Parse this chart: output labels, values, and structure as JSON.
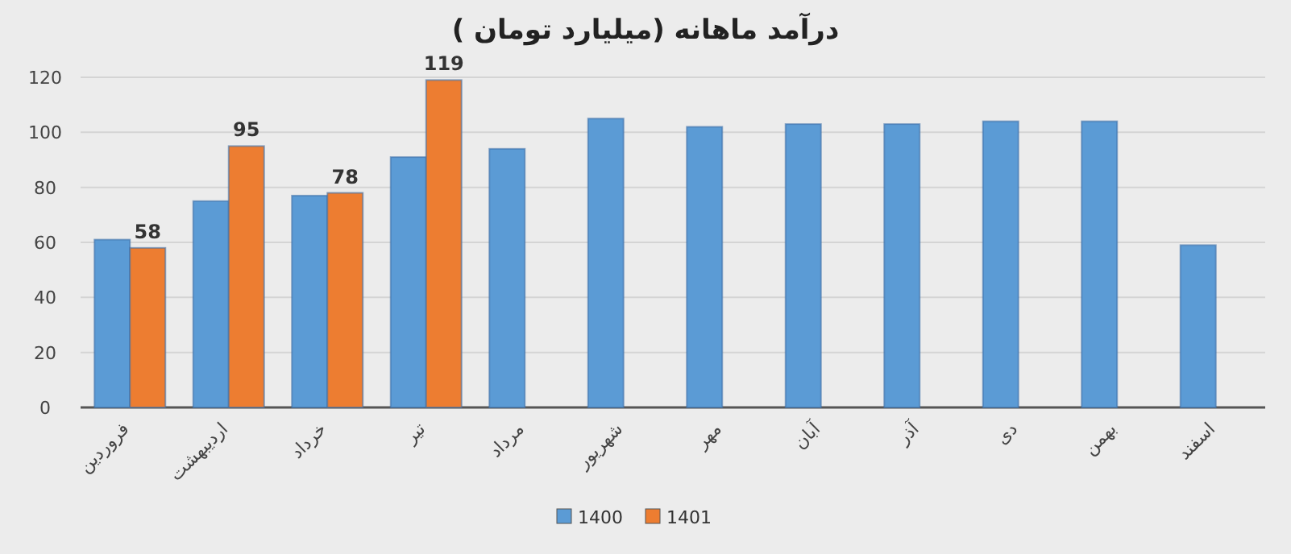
{
  "chart_data": {
    "type": "bar",
    "title": "درآمد ماهانه (میلیارد تومان )",
    "categories": [
      "فروردین",
      "اردیبهشت",
      "خرداد",
      "تیر",
      "مرداد",
      "شهریور",
      "مهر",
      "آبان",
      "آذر",
      "دی",
      "بهمن",
      "اسفند"
    ],
    "series": [
      {
        "name": "1400",
        "color": "#5b9bd5",
        "values": [
          61,
          75,
          77,
          91,
          94,
          105,
          102,
          103,
          103,
          104,
          104,
          59
        ]
      },
      {
        "name": "1401",
        "color": "#ed7d31",
        "values": [
          58,
          95,
          78,
          119,
          null,
          null,
          null,
          null,
          null,
          null,
          null,
          null
        ],
        "value_labels": [
          "58",
          "95",
          "78",
          "119",
          null,
          null,
          null,
          null,
          null,
          null,
          null,
          null
        ]
      }
    ],
    "ylim": [
      0,
      120
    ],
    "yticks": [
      0,
      20,
      40,
      60,
      80,
      100,
      120
    ],
    "grid": "y",
    "legend": "bottom"
  }
}
